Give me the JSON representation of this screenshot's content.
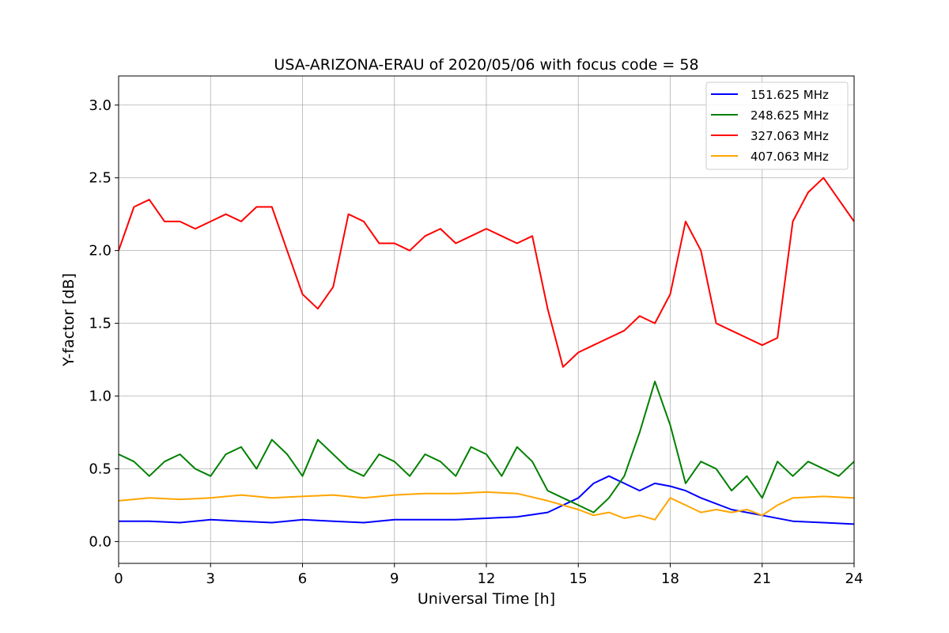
{
  "chart_data": {
    "type": "line",
    "title": "USA-ARIZONA-ERAU of 2020/05/06 with focus code = 58",
    "xlabel": "Universal Time [h]",
    "ylabel": "Y-factor [dB]",
    "xlim": [
      0,
      24
    ],
    "ylim": [
      -0.15,
      3.2
    ],
    "xticks": [
      0,
      3,
      6,
      9,
      12,
      15,
      18,
      21,
      24
    ],
    "xtick_labels": [
      "0",
      "3",
      "6",
      "9",
      "12",
      "15",
      "18",
      "21",
      "24"
    ],
    "yticks": [
      0.0,
      0.5,
      1.0,
      1.5,
      2.0,
      2.5,
      3.0
    ],
    "ytick_labels": [
      "0.0",
      "0.5",
      "1.0",
      "1.5",
      "2.0",
      "2.5",
      "3.0"
    ],
    "grid": true,
    "legend_position": "top-right",
    "series": [
      {
        "name": "151.625 MHz",
        "color": "#0000ff",
        "x": [
          0,
          1,
          2,
          3,
          4,
          5,
          6,
          7,
          8,
          9,
          10,
          11,
          12,
          13,
          14,
          15,
          15.5,
          16,
          16.5,
          17,
          17.5,
          18,
          18.5,
          19,
          20,
          21,
          22,
          23,
          24
        ],
        "y": [
          0.14,
          0.14,
          0.13,
          0.15,
          0.14,
          0.13,
          0.15,
          0.14,
          0.13,
          0.15,
          0.15,
          0.15,
          0.16,
          0.17,
          0.2,
          0.3,
          0.4,
          0.45,
          0.4,
          0.35,
          0.4,
          0.38,
          0.35,
          0.3,
          0.22,
          0.18,
          0.14,
          0.13,
          0.12
        ]
      },
      {
        "name": "248.625 MHz",
        "color": "#008000",
        "x": [
          0,
          0.5,
          1,
          1.5,
          2,
          2.5,
          3,
          3.5,
          4,
          4.5,
          5,
          5.5,
          6,
          6.5,
          7,
          7.5,
          8,
          8.5,
          9,
          9.5,
          10,
          10.5,
          11,
          11.5,
          12,
          12.5,
          13,
          13.5,
          14,
          14.5,
          15,
          15.5,
          16,
          16.5,
          17,
          17.5,
          18,
          18.5,
          19,
          19.5,
          20,
          20.5,
          21,
          21.5,
          22,
          22.5,
          23,
          23.5,
          24
        ],
        "y": [
          0.6,
          0.55,
          0.45,
          0.55,
          0.6,
          0.5,
          0.45,
          0.6,
          0.65,
          0.5,
          0.7,
          0.6,
          0.45,
          0.7,
          0.6,
          0.5,
          0.45,
          0.6,
          0.55,
          0.45,
          0.6,
          0.55,
          0.45,
          0.65,
          0.6,
          0.45,
          0.65,
          0.55,
          0.35,
          0.3,
          0.25,
          0.2,
          0.3,
          0.45,
          0.75,
          1.1,
          0.8,
          0.4,
          0.55,
          0.5,
          0.35,
          0.45,
          0.3,
          0.55,
          0.45,
          0.55,
          0.5,
          0.45,
          0.55
        ]
      },
      {
        "name": "327.063 MHz",
        "color": "#ff0000",
        "x": [
          0,
          0.5,
          1,
          1.5,
          2,
          2.5,
          3,
          3.5,
          4,
          4.5,
          5,
          5.5,
          6,
          6.5,
          7,
          7.5,
          8,
          8.5,
          9,
          9.5,
          10,
          10.5,
          11,
          11.5,
          12,
          12.5,
          13,
          13.5,
          14,
          14.5,
          15,
          15.5,
          16,
          16.5,
          17,
          17.5,
          18,
          18.5,
          19,
          19.5,
          20,
          20.5,
          21,
          21.5,
          22,
          22.5,
          23,
          23.5,
          24
        ],
        "y": [
          2.0,
          2.3,
          2.35,
          2.2,
          2.2,
          2.15,
          2.2,
          2.25,
          2.2,
          2.3,
          2.3,
          2.0,
          1.7,
          1.6,
          1.75,
          2.25,
          2.2,
          2.05,
          2.05,
          2.0,
          2.1,
          2.15,
          2.05,
          2.1,
          2.15,
          2.1,
          2.05,
          2.1,
          1.6,
          1.2,
          1.3,
          1.35,
          1.4,
          1.45,
          1.55,
          1.5,
          1.7,
          2.2,
          2.0,
          1.5,
          1.45,
          1.4,
          1.35,
          1.4,
          2.2,
          2.4,
          2.5,
          2.35,
          2.2
        ]
      },
      {
        "name": "407.063 MHz",
        "color": "#ffa500",
        "x": [
          0,
          1,
          2,
          3,
          4,
          5,
          6,
          7,
          8,
          9,
          10,
          11,
          12,
          13,
          14,
          15,
          15.5,
          16,
          16.5,
          17,
          17.5,
          18,
          18.5,
          19,
          19.5,
          20,
          20.5,
          21,
          21.5,
          22,
          23,
          24
        ],
        "y": [
          0.28,
          0.3,
          0.29,
          0.3,
          0.32,
          0.3,
          0.31,
          0.32,
          0.3,
          0.32,
          0.33,
          0.33,
          0.34,
          0.33,
          0.28,
          0.22,
          0.18,
          0.2,
          0.16,
          0.18,
          0.15,
          0.3,
          0.25,
          0.2,
          0.22,
          0.2,
          0.22,
          0.18,
          0.25,
          0.3,
          0.31,
          0.3
        ]
      }
    ]
  }
}
